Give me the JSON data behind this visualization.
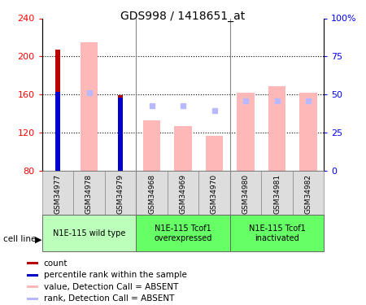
{
  "title": "GDS998 / 1418651_at",
  "samples": [
    "GSM34977",
    "GSM34978",
    "GSM34979",
    "GSM34968",
    "GSM34969",
    "GSM34970",
    "GSM34980",
    "GSM34981",
    "GSM34982"
  ],
  "count_values": [
    207,
    null,
    159,
    null,
    null,
    null,
    null,
    null,
    null
  ],
  "percentile_values": [
    163,
    null,
    157,
    null,
    null,
    null,
    null,
    null,
    null
  ],
  "pink_bar_values": [
    null,
    215,
    null,
    133,
    127,
    117,
    162,
    169,
    162
  ],
  "blue_square_values": [
    null,
    162,
    null,
    148,
    148,
    143,
    153,
    153,
    153
  ],
  "ylim_left": [
    80,
    240
  ],
  "ylim_right": [
    0,
    100
  ],
  "yticks_left": [
    80,
    120,
    160,
    200,
    240
  ],
  "ytick_labels_left": [
    "80",
    "120",
    "160",
    "200",
    "240"
  ],
  "yticks_right": [
    0,
    25,
    50,
    75,
    100
  ],
  "ytick_labels_right": [
    "0",
    "25",
    "50",
    "75",
    "100%"
  ],
  "count_color": "#bb0000",
  "percentile_color": "#0000cc",
  "pink_color": "#ffb8b8",
  "blue_sq_color": "#b8b8ff",
  "group_labels": [
    "N1E-115 wild type",
    "N1E-115 Tcof1\noverexpressed",
    "N1E-115 Tcof1\ninactivated"
  ],
  "group_ranges": [
    [
      0,
      2
    ],
    [
      3,
      5
    ],
    [
      6,
      8
    ]
  ],
  "group_colors": [
    "#bbffbb",
    "#66ff66",
    "#66ff66"
  ],
  "cell_line_label": "cell line",
  "legend_labels": [
    "count",
    "percentile rank within the sample",
    "value, Detection Call = ABSENT",
    "rank, Detection Call = ABSENT"
  ],
  "legend_colors": [
    "#bb0000",
    "#0000cc",
    "#ffb8b8",
    "#b8b8ff"
  ]
}
